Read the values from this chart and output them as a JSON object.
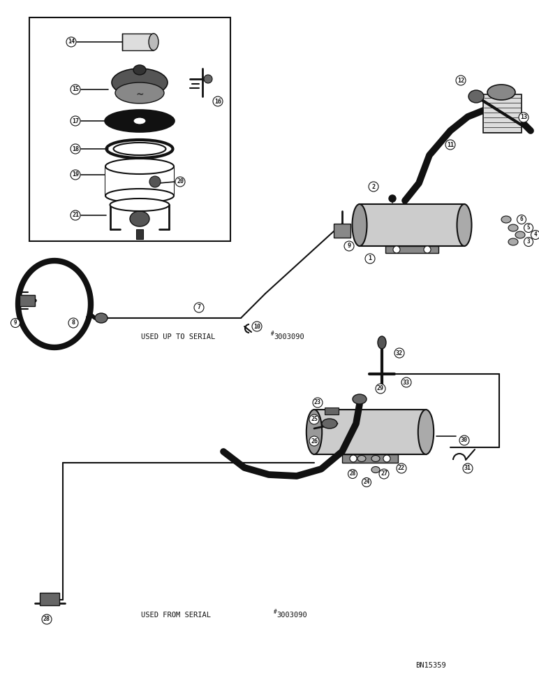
{
  "bg_color": "#ffffff",
  "line_color": "#111111",
  "text_color": "#111111",
  "fig_width": 7.72,
  "fig_height": 10.0,
  "dpi": 100,
  "text_used_up": "USED UP TO SERIAL",
  "text_serial_up": "3003090",
  "text_used_from": "USED FROM SERIAL",
  "text_serial_from": "3003090",
  "text_ref": "BN15359",
  "superscript": "#"
}
